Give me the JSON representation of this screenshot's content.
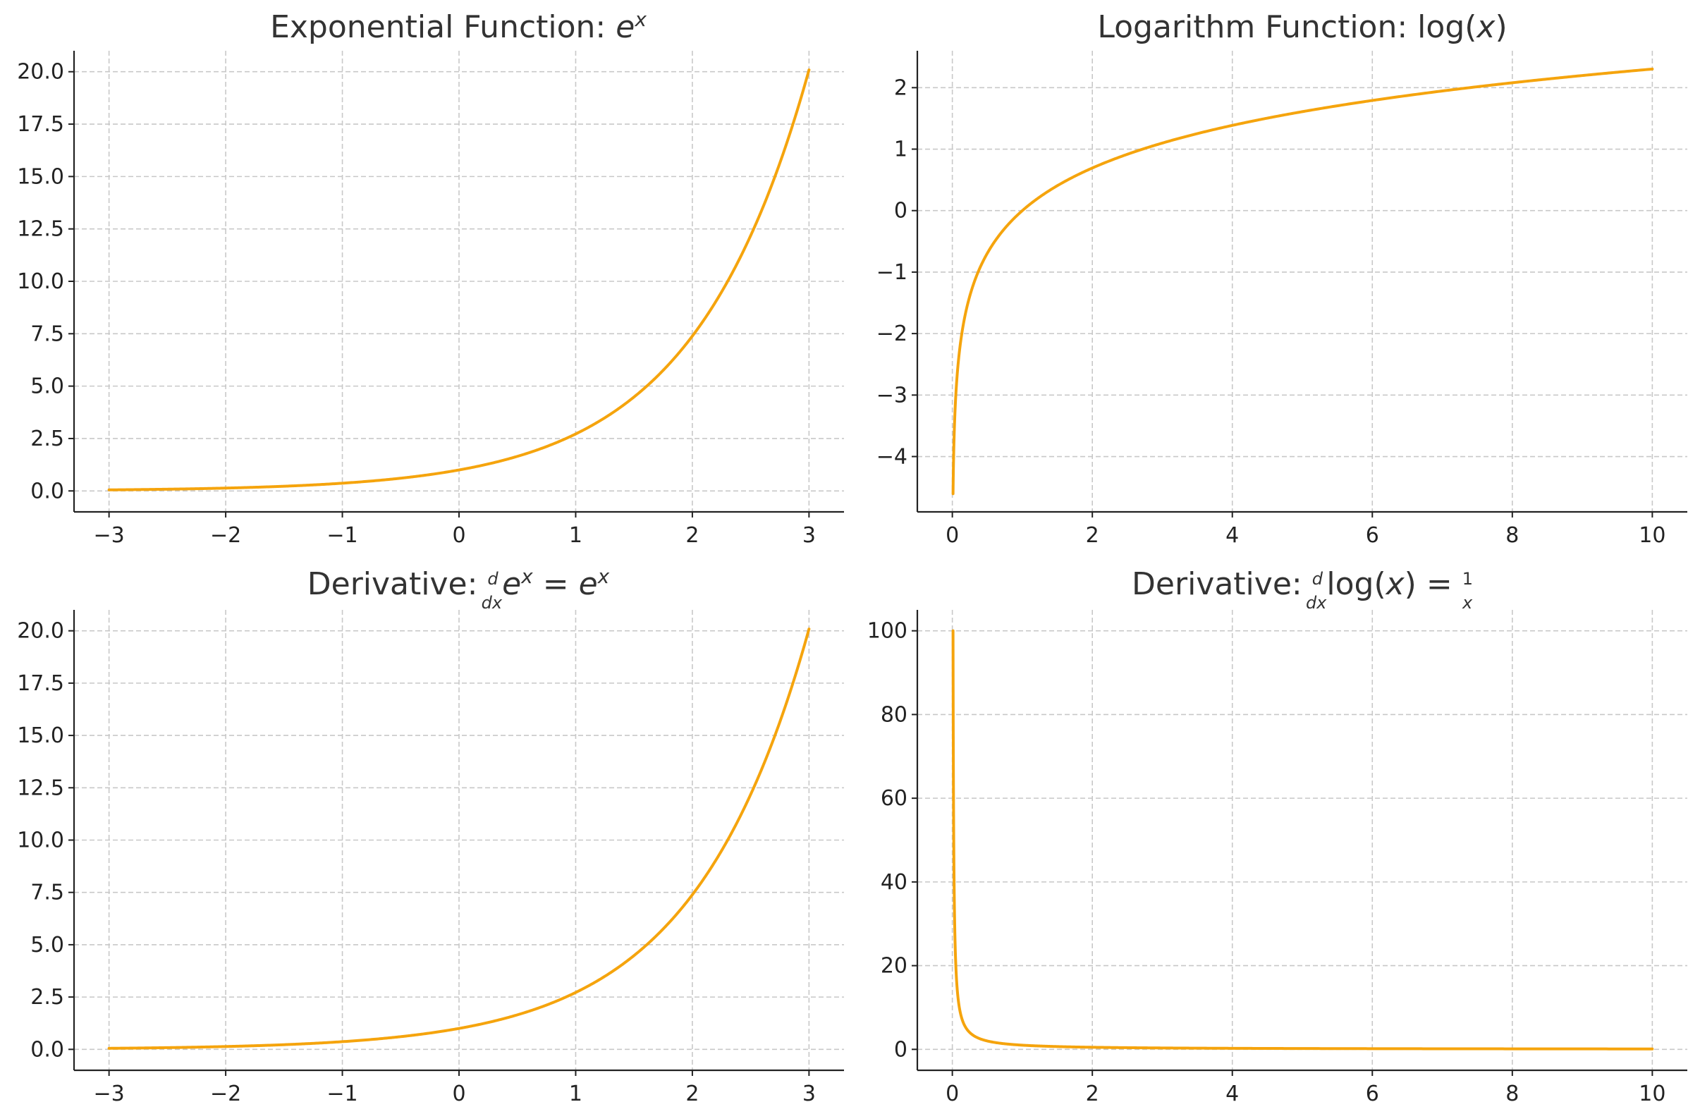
{
  "colors": {
    "curve": "#f5a40d"
  },
  "chart_data": [
    {
      "id": "exp",
      "type": "line",
      "title": "Exponential Function: e^x",
      "function": "exp",
      "x_range": [
        -3,
        3
      ],
      "xlim": [
        -3.3,
        3.3
      ],
      "ylim": [
        -1.0,
        21.0
      ],
      "xticks": [
        -3,
        -2,
        -1,
        0,
        1,
        2,
        3
      ],
      "xtick_labels": [
        "−3",
        "−2",
        "−1",
        "0",
        "1",
        "2",
        "3"
      ],
      "yticks": [
        0,
        2.5,
        5,
        7.5,
        10,
        12.5,
        15,
        17.5,
        20
      ],
      "ytick_labels": [
        "0.0",
        "2.5",
        "5.0",
        "7.5",
        "10.0",
        "12.5",
        "15.0",
        "17.5",
        "20.0"
      ],
      "grid": true,
      "series": [
        {
          "x": [
            -3,
            -2,
            -1,
            0,
            1,
            2,
            3
          ],
          "y": [
            0.05,
            0.14,
            0.37,
            1.0,
            2.72,
            7.39,
            20.09
          ]
        }
      ]
    },
    {
      "id": "log",
      "type": "line",
      "title": "Logarithm Function: log(x)",
      "function": "log",
      "x_range": [
        0.01,
        10
      ],
      "xlim": [
        -0.5,
        10.5
      ],
      "ylim": [
        -4.9,
        2.6
      ],
      "xticks": [
        0,
        2,
        4,
        6,
        8,
        10
      ],
      "xtick_labels": [
        "0",
        "2",
        "4",
        "6",
        "8",
        "10"
      ],
      "yticks": [
        -4,
        -3,
        -2,
        -1,
        0,
        1,
        2
      ],
      "ytick_labels": [
        "−4",
        "−3",
        "−2",
        "−1",
        "0",
        "1",
        "2"
      ],
      "grid": true,
      "series": [
        {
          "x": [
            0.01,
            0.5,
            1,
            2,
            4,
            6,
            8,
            10
          ],
          "y": [
            -4.61,
            -0.69,
            0,
            0.69,
            1.39,
            1.79,
            2.08,
            2.3
          ]
        }
      ]
    },
    {
      "id": "dexp",
      "type": "line",
      "title": "Derivative: d/dx e^x = e^x",
      "function": "exp",
      "x_range": [
        -3,
        3
      ],
      "xlim": [
        -3.3,
        3.3
      ],
      "ylim": [
        -1.0,
        21.0
      ],
      "xticks": [
        -3,
        -2,
        -1,
        0,
        1,
        2,
        3
      ],
      "xtick_labels": [
        "−3",
        "−2",
        "−1",
        "0",
        "1",
        "2",
        "3"
      ],
      "yticks": [
        0,
        2.5,
        5,
        7.5,
        10,
        12.5,
        15,
        17.5,
        20
      ],
      "ytick_labels": [
        "0.0",
        "2.5",
        "5.0",
        "7.5",
        "10.0",
        "12.5",
        "15.0",
        "17.5",
        "20.0"
      ],
      "grid": true,
      "series": [
        {
          "x": [
            -3,
            -2,
            -1,
            0,
            1,
            2,
            3
          ],
          "y": [
            0.05,
            0.14,
            0.37,
            1.0,
            2.72,
            7.39,
            20.09
          ]
        }
      ]
    },
    {
      "id": "dlog",
      "type": "line",
      "title": "Derivative: d/dx log(x) = 1/x",
      "function": "reciprocal",
      "x_range": [
        0.01,
        10
      ],
      "xlim": [
        -0.5,
        10.5
      ],
      "ylim": [
        -5,
        105
      ],
      "xticks": [
        0,
        2,
        4,
        6,
        8,
        10
      ],
      "xtick_labels": [
        "0",
        "2",
        "4",
        "6",
        "8",
        "10"
      ],
      "yticks": [
        0,
        20,
        40,
        60,
        80,
        100
      ],
      "ytick_labels": [
        "0",
        "20",
        "40",
        "60",
        "80",
        "100"
      ],
      "grid": true,
      "series": [
        {
          "x": [
            0.01,
            0.1,
            0.5,
            1,
            2,
            4,
            6,
            8,
            10
          ],
          "y": [
            100,
            10,
            2,
            1,
            0.5,
            0.25,
            0.17,
            0.13,
            0.1
          ]
        }
      ]
    }
  ]
}
